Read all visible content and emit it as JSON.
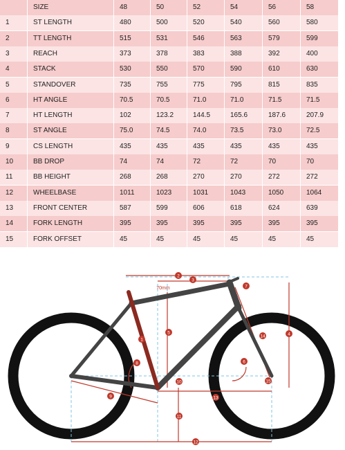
{
  "table": {
    "header": [
      "",
      "SIZE",
      "48",
      "50",
      "52",
      "54",
      "56",
      "58"
    ],
    "rows": [
      [
        "1",
        "ST LENGTH",
        "480",
        "500",
        "520",
        "540",
        "560",
        "580"
      ],
      [
        "2",
        "TT LENGTH",
        "515",
        "531",
        "546",
        "563",
        "579",
        "599"
      ],
      [
        "3",
        "REACH",
        "373",
        "378",
        "383",
        "388",
        "392",
        "400"
      ],
      [
        "4",
        "STACK",
        "530",
        "550",
        "570",
        "590",
        "610",
        "630"
      ],
      [
        "5",
        "STANDOVER",
        "735",
        "755",
        "775",
        "795",
        "815",
        "835"
      ],
      [
        "6",
        "HT ANGLE",
        "70.5",
        "70.5",
        "71.0",
        "71.0",
        "71.5",
        "71.5"
      ],
      [
        "7",
        "HT LENGTH",
        "102",
        "123.2",
        "144.5",
        "165.6",
        "187.6",
        "207.9"
      ],
      [
        "8",
        "ST ANGLE",
        "75.0",
        "74.5",
        "74.0",
        "73.5",
        "73.0",
        "72.5"
      ],
      [
        "9",
        "CS LENGTH",
        "435",
        "435",
        "435",
        "435",
        "435",
        "435"
      ],
      [
        "10",
        "BB DROP",
        "74",
        "74",
        "72",
        "72",
        "70",
        "70"
      ],
      [
        "11",
        "BB HEIGHT",
        "268",
        "268",
        "270",
        "270",
        "272",
        "272"
      ],
      [
        "12",
        "WHEELBASE",
        "1011",
        "1023",
        "1031",
        "1043",
        "1050",
        "1064"
      ],
      [
        "13",
        "FRONT CENTER",
        "587",
        "599",
        "606",
        "618",
        "624",
        "639"
      ],
      [
        "14",
        "FORK LENGTH",
        "395",
        "395",
        "395",
        "395",
        "395",
        "395"
      ],
      [
        "15",
        "FORK OFFSET",
        "45",
        "45",
        "45",
        "45",
        "45",
        "45"
      ]
    ]
  },
  "diagram": {
    "dim_label": "70mm",
    "markers": [
      "1",
      "2",
      "3",
      "4",
      "5",
      "6",
      "7",
      "8",
      "9",
      "10",
      "11",
      "12",
      "13",
      "14",
      "15"
    ]
  }
}
